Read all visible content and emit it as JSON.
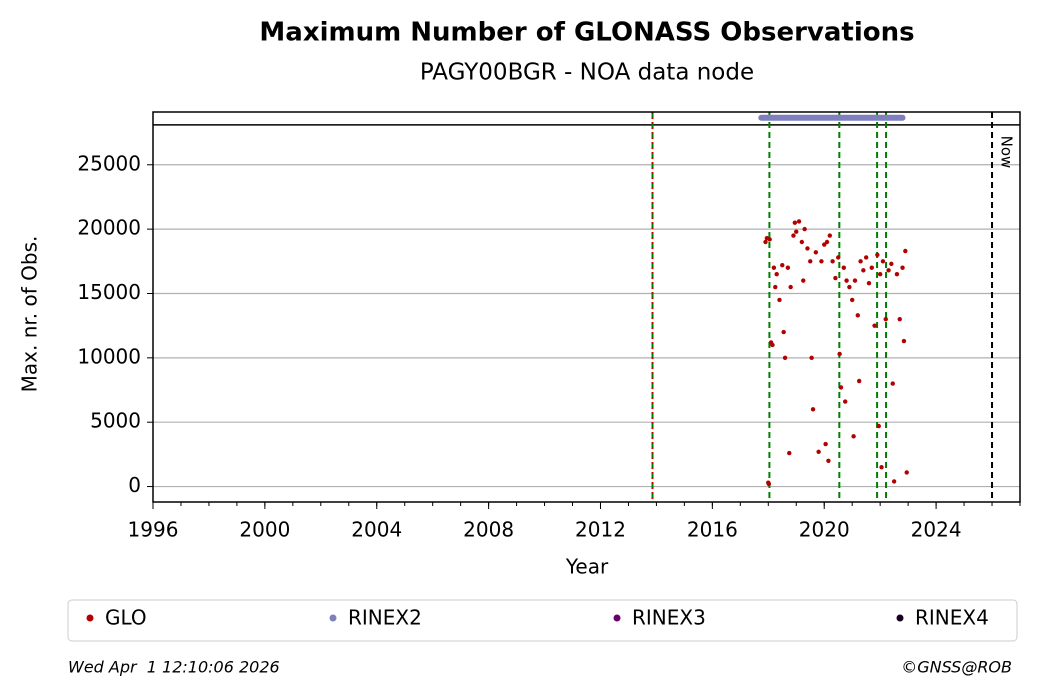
{
  "chart_data": {
    "type": "scatter",
    "title": "Maximum Number of GLONASS Observations",
    "subtitle": "PAGY00BGR - NOA data node",
    "x_label": "Year",
    "y_label": "Max. nr. of Obs.",
    "xlim": [
      1996,
      2027
    ],
    "ylim": [
      -1200,
      29100
    ],
    "xticks": [
      1996,
      2000,
      2004,
      2008,
      2012,
      2016,
      2020,
      2024
    ],
    "yticks": [
      0,
      5000,
      10000,
      15000,
      20000,
      25000
    ],
    "grid": true,
    "separator_y": 28100,
    "event_lines": [
      {
        "x": 2013.86,
        "color": "#008000",
        "style": "dashed"
      },
      {
        "x": 2013.86,
        "color": "#cc0000",
        "style": "dotted"
      },
      {
        "x": 2018.04,
        "color": "#008000",
        "style": "dashed"
      },
      {
        "x": 2020.54,
        "color": "#008000",
        "style": "dashed"
      },
      {
        "x": 2021.89,
        "color": "#008000",
        "style": "dashed"
      },
      {
        "x": 2022.21,
        "color": "#008000",
        "style": "dashed"
      }
    ],
    "now_line": {
      "x": 2026.0,
      "label": "Now",
      "color": "#000000"
    },
    "series": [
      {
        "name": "GLO",
        "color": "#b30000",
        "x": [
          2017.9,
          2017.95,
          2018.0,
          2018.02,
          2018.05,
          2018.1,
          2018.15,
          2018.2,
          2018.25,
          2018.3,
          2018.4,
          2018.5,
          2018.55,
          2018.6,
          2018.7,
          2018.75,
          2018.8,
          2018.9,
          2018.95,
          2019.0,
          2019.1,
          2019.2,
          2019.25,
          2019.3,
          2019.4,
          2019.5,
          2019.55,
          2019.6,
          2019.7,
          2019.8,
          2019.9,
          2020.0,
          2020.05,
          2020.1,
          2020.15,
          2020.2,
          2020.3,
          2020.4,
          2020.5,
          2020.55,
          2020.6,
          2020.7,
          2020.75,
          2020.8,
          2020.9,
          2021.0,
          2021.05,
          2021.1,
          2021.2,
          2021.25,
          2021.3,
          2021.4,
          2021.5,
          2021.6,
          2021.7,
          2021.8,
          2021.9,
          2021.95,
          2022.0,
          2022.05,
          2022.1,
          2022.2,
          2022.3,
          2022.4,
          2022.45,
          2022.5,
          2022.6,
          2022.7,
          2022.8,
          2022.85,
          2022.9,
          2022.95
        ],
        "values": [
          19000,
          19300,
          300,
          200,
          19200,
          11200,
          11000,
          17000,
          15500,
          16500,
          14500,
          17200,
          12000,
          10000,
          17000,
          2600,
          15500,
          19500,
          20500,
          19800,
          20600,
          19000,
          16000,
          20000,
          18500,
          17500,
          10000,
          6000,
          18200,
          2700,
          17500,
          18800,
          3300,
          19000,
          2000,
          19500,
          17500,
          16200,
          17800,
          10300,
          7700,
          17000,
          6600,
          16000,
          15500,
          14500,
          3900,
          16000,
          13300,
          8200,
          17500,
          16800,
          17800,
          15800,
          17000,
          12500,
          18000,
          4700,
          16500,
          1500,
          17500,
          13000,
          16800,
          17300,
          8000,
          400,
          16500,
          13000,
          17000,
          11300,
          18300,
          1100
        ]
      },
      {
        "name": "RINEX2",
        "color": "#7f7fbf",
        "x": [
          2017.75,
          2022.8
        ],
        "values": [
          28650,
          28650
        ]
      },
      {
        "name": "RINEX3",
        "color": "#6a006a",
        "x": [],
        "values": []
      },
      {
        "name": "RINEX4",
        "color": "#1a0020",
        "x": [],
        "values": []
      }
    ],
    "footer_left": "Wed Apr  1 12:10:06 2026",
    "footer_right": "©GNSS@ROB"
  }
}
